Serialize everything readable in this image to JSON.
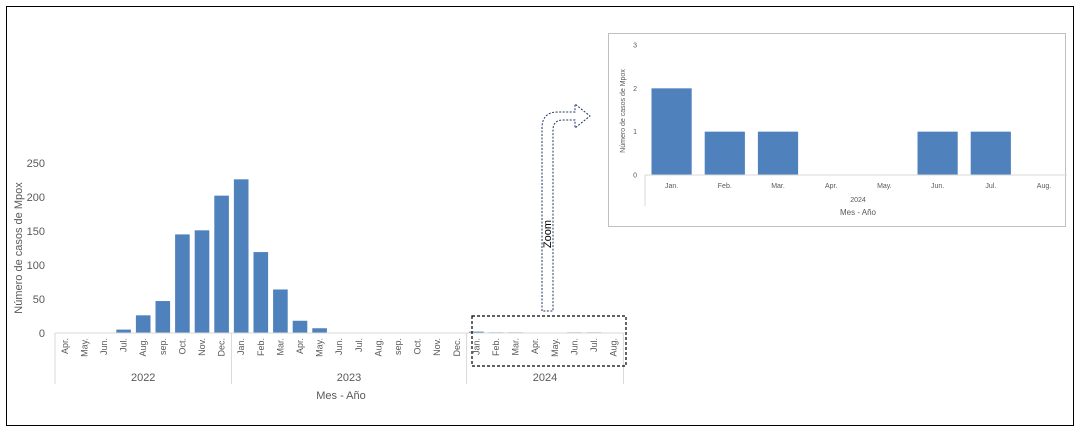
{
  "chart_data": [
    {
      "type": "bar",
      "title": "",
      "xlabel": "Mes - Año",
      "ylabel": "Número de casos de Mpox",
      "ylim": [
        0,
        250
      ],
      "yticks": [
        "0",
        "50",
        "100",
        "150",
        "200",
        "250"
      ],
      "grid": false,
      "bar_color": "#4f81bd",
      "groups": [
        {
          "label": "2022",
          "count": 9
        },
        {
          "label": "2023",
          "count": 12
        },
        {
          "label": "2024",
          "count": 8
        }
      ],
      "categories": [
        "Apr.",
        "May.",
        "Jun.",
        "Jul.",
        "Aug.",
        "sep.",
        "Oct.",
        "Nov.",
        "Dec.",
        "Jan.",
        "Feb.",
        "Mar.",
        "Apr.",
        "May.",
        "Jun.",
        "Jul.",
        "Aug.",
        "sep.",
        "Oct.",
        "Nov.",
        "Dec.",
        "Jan.",
        "Feb.",
        "Mar.",
        "Apr.",
        "May.",
        "Jun.",
        "Jul.",
        "Aug."
      ],
      "values": [
        0,
        0,
        0,
        5,
        26,
        47,
        145,
        151,
        202,
        226,
        119,
        64,
        18,
        7,
        0,
        0,
        0,
        0,
        0,
        0,
        0,
        2,
        1,
        1,
        0,
        0,
        1,
        1,
        0
      ]
    },
    {
      "type": "bar",
      "title": "",
      "subtitle": "2024",
      "xlabel": "Mes - Año",
      "ylabel": "Número de casos de Mpox",
      "ylim": [
        0,
        3
      ],
      "yticks": [
        "0",
        "1",
        "2",
        "3"
      ],
      "grid": false,
      "bar_color": "#4f81bd",
      "categories": [
        "Jan.",
        "Feb.",
        "Mar.",
        "Apr.",
        "May.",
        "Jun.",
        "Jul.",
        "Aug."
      ],
      "values": [
        2,
        1,
        1,
        0,
        0,
        1,
        1,
        0
      ]
    }
  ],
  "annotation": {
    "zoom_label": "Zoom"
  }
}
